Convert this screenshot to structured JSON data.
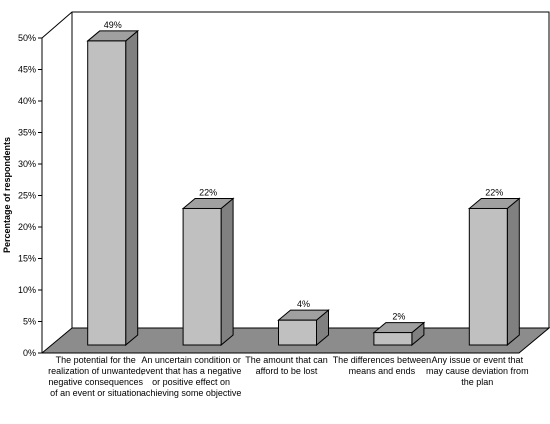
{
  "chart_data": {
    "type": "bar",
    "title": "",
    "xlabel": "",
    "ylabel": "Percentage of respondents",
    "ylim": [
      0,
      50
    ],
    "yticks": [
      "0%",
      "5%",
      "10%",
      "15%",
      "20%",
      "25%",
      "30%",
      "35%",
      "40%",
      "45%",
      "50%"
    ],
    "ytick_values": [
      0,
      5,
      10,
      15,
      20,
      25,
      30,
      35,
      40,
      45,
      50
    ],
    "categories": [
      "The potential for the realization of unwanted, negative consequences of an event or situation",
      "An uncertain condition or event that has a negative or positive effect on achieving some objective",
      "The amount that can afford to be lost",
      "The differences between means and ends",
      "Any issue or event that may cause deviation from the plan"
    ],
    "values": [
      49,
      22,
      4,
      2,
      22
    ],
    "data_labels": [
      "49%",
      "22%",
      "4%",
      "2%",
      "22%"
    ],
    "grid": false,
    "style": "3d-bar",
    "colors": {
      "bar_front": "#c0c0c0",
      "bar_side": "#808080",
      "bar_top": "#a0a0a0",
      "floor": "#8c8c8c",
      "outline": "#000000"
    }
  }
}
